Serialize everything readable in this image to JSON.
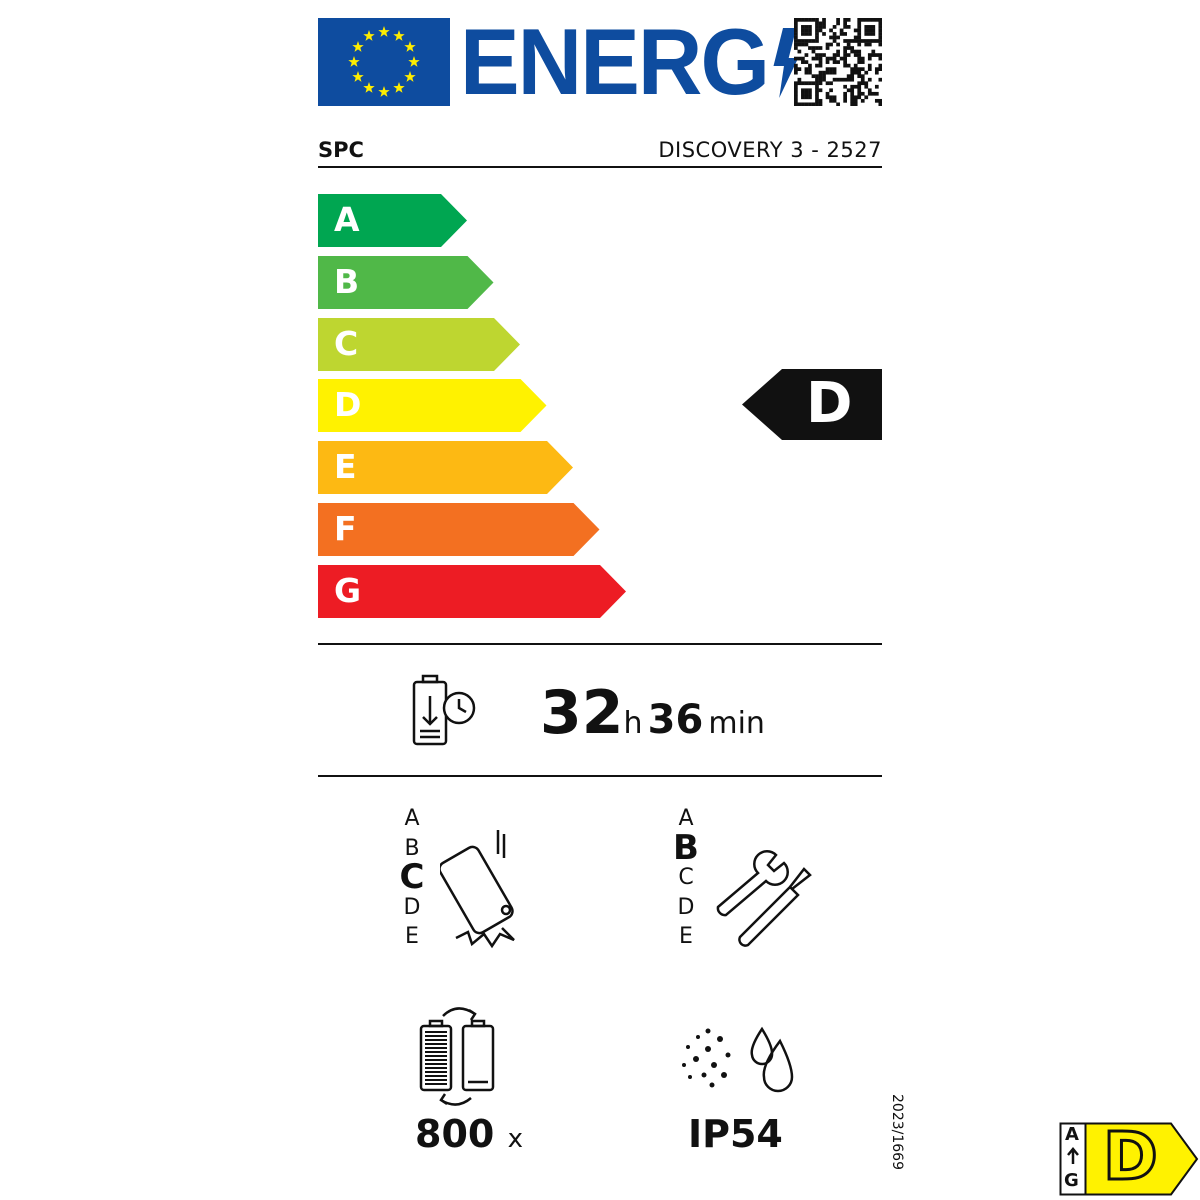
{
  "header": {
    "logo_text": "ENERG",
    "brand": "SPC",
    "model": "DISCOVERY 3 - 2527"
  },
  "scale": {
    "classes": [
      {
        "label": "A",
        "color": "#00a651"
      },
      {
        "label": "B",
        "color": "#50b848"
      },
      {
        "label": "C",
        "color": "#bed630"
      },
      {
        "label": "D",
        "color": "#fff200"
      },
      {
        "label": "E",
        "color": "#fdb913"
      },
      {
        "label": "F",
        "color": "#f37021"
      },
      {
        "label": "G",
        "color": "#ed1c24"
      }
    ],
    "rating": "D"
  },
  "battery_endurance": {
    "hours": "32",
    "hours_unit": "h",
    "minutes": "36",
    "minutes_unit": "min",
    "icon": "battery-clock-icon"
  },
  "drop_resistance": {
    "classes": [
      "A",
      "B",
      "C",
      "D",
      "E"
    ],
    "selected": "C",
    "icon": "phone-drop-icon"
  },
  "repairability": {
    "classes": [
      "A",
      "B",
      "C",
      "D",
      "E"
    ],
    "selected": "B",
    "icon": "wrench-screwdriver-icon"
  },
  "battery_cycles": {
    "value": "800",
    "unit": "x",
    "icon": "battery-cycle-icon"
  },
  "ingress_protection": {
    "value": "IP54",
    "icon": "dust-water-icon"
  },
  "regulation": "2023/1669",
  "mini_label": {
    "top": "A",
    "bottom": "G",
    "rating": "D"
  },
  "colors": {
    "eu_blue": "#0e4c9f",
    "eu_star": "#ffed00",
    "indicator": "#111111"
  }
}
